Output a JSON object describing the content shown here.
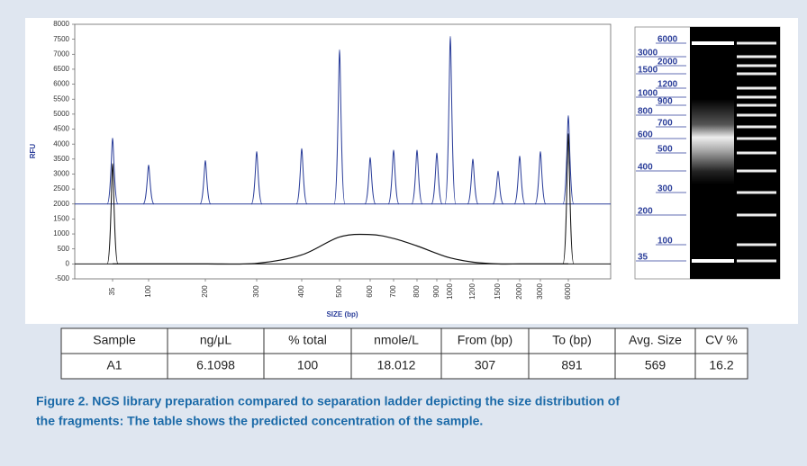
{
  "chart_data": {
    "type": "electropherogram",
    "y_label": "RFU",
    "x_label": "SIZE (bp)",
    "categories": [
      "35",
      "100",
      "200",
      "300",
      "400",
      "500",
      "600",
      "700",
      "800",
      "900",
      "1000",
      "1200",
      "1500",
      "2000",
      "3000",
      "6000"
    ],
    "ylim": [
      -500,
      8000
    ],
    "yticks": [
      -500,
      0,
      500,
      1000,
      1500,
      2000,
      2500,
      3000,
      3500,
      4000,
      4500,
      5000,
      5500,
      6000,
      6500,
      7000,
      7500,
      8000
    ],
    "series": [
      {
        "color": "#2b3e9a",
        "style": "peaks",
        "baseline": 2000,
        "values": [
          4200,
          3300,
          3450,
          3750,
          3850,
          7150,
          3550,
          3800,
          3800,
          3700,
          7600,
          3500,
          3100,
          3600,
          3750,
          4950
        ]
      },
      {
        "color": "#111111",
        "style": "peaks",
        "baseline": 0,
        "values": [
          3350,
          null,
          null,
          null,
          null,
          null,
          null,
          null,
          null,
          null,
          null,
          null,
          null,
          null,
          null,
          4350
        ]
      },
      {
        "color": "#111111",
        "style": "curve",
        "values": [
          0,
          0,
          0,
          20,
          300,
          900,
          980,
          850,
          600,
          350,
          200,
          60,
          0,
          0,
          0,
          0
        ]
      }
    ]
  },
  "gel": {
    "labels": [
      6000,
      3000,
      2000,
      1500,
      1200,
      1000,
      900,
      800,
      700,
      600,
      500,
      400,
      300,
      200,
      100,
      35
    ]
  },
  "table": {
    "header": [
      "Sample",
      "ng/μL",
      "% total",
      "nmole/L",
      "From (bp)",
      "To (bp)",
      "Avg. Size",
      "CV %"
    ],
    "rows": [
      [
        "A1",
        "6.1098",
        "100",
        "18.012",
        "307",
        "891",
        "569",
        "16.2"
      ]
    ]
  },
  "caption": [
    "Figure 2. NGS library preparation compared to separation ladder depicting the size distribution of",
    "the fragments: The table shows the predicted concentration of the sample."
  ]
}
